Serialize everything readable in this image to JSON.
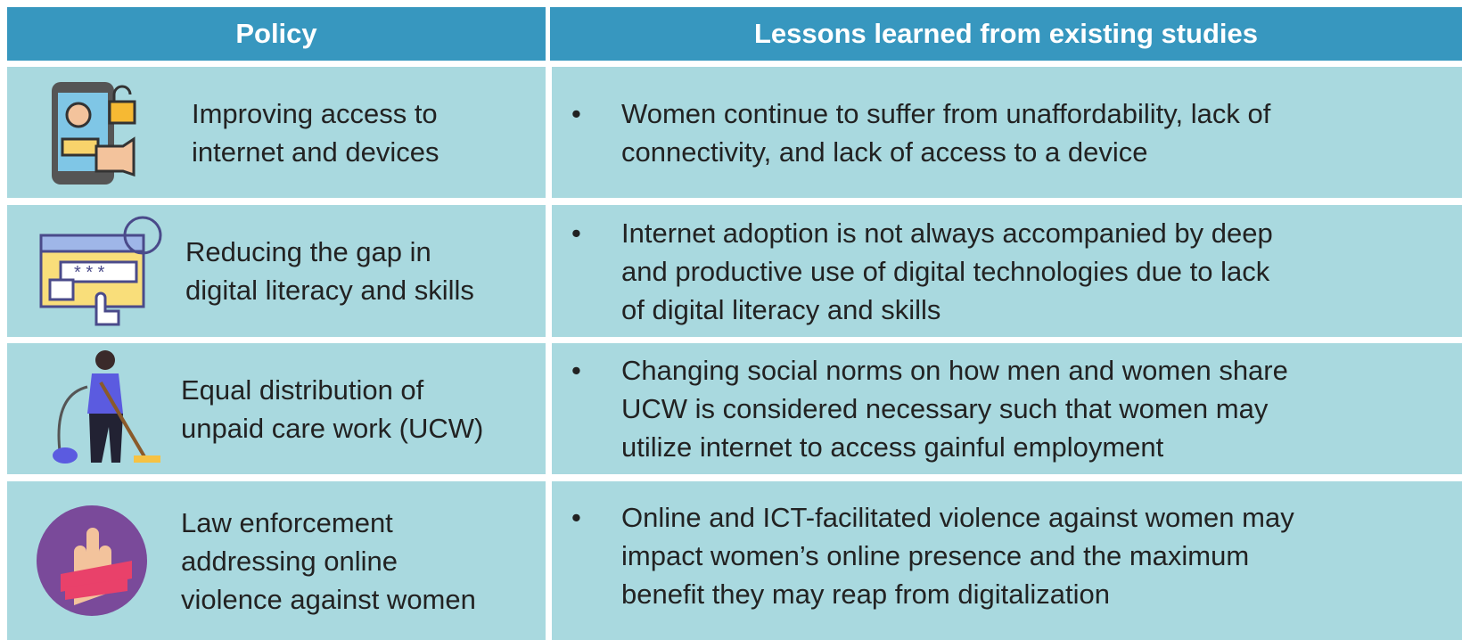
{
  "table": {
    "headers": [
      "Policy",
      "Lessons learned from existing studies"
    ],
    "rows": [
      {
        "policy": [
          "Improving access to",
          "internet and devices"
        ],
        "lesson": [
          "Women continue to suffer from unaffordability, lack of",
          "connectivity, and lack of access to a device"
        ]
      },
      {
        "policy": [
          "Reducing the gap in",
          "digital literacy and skills"
        ],
        "lesson": [
          "Internet adoption is not always accompanied by deep",
          "and productive use of digital technologies due to lack",
          "of digital literacy and skills"
        ]
      },
      {
        "policy": [
          "Equal distribution of",
          "unpaid care work (UCW)"
        ],
        "lesson": [
          "Changing social norms on how men and women share",
          "UCW is considered necessary such that women may",
          "utilize internet to access gainful employment"
        ]
      },
      {
        "policy": [
          "Law enforcement",
          "addressing online",
          "violence against women"
        ],
        "lesson": [
          "Online and ICT-facilitated violence against women may",
          "impact women’s online presence and the maximum",
          "benefit they may reap from digitalization"
        ]
      }
    ],
    "bullet": "•"
  }
}
